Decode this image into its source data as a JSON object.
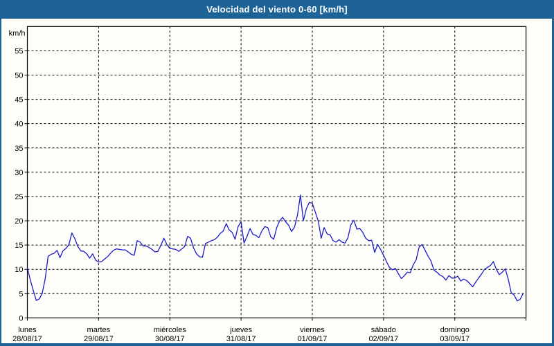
{
  "window": {
    "title": "Velocidad del viento 0-60 [km/h]"
  },
  "colors": {
    "header_bg": "#1e6396",
    "frame": "#1e6396",
    "canvas_bg": "#fdfdf9",
    "line": "#1a1ac8",
    "grid": "#000000",
    "text": "#000000"
  },
  "chart_data": {
    "type": "line",
    "title": "Velocidad del viento 0-60 [km/h]",
    "ylabel": "km/h",
    "ylim": [
      0,
      60
    ],
    "ytick_interval": 5,
    "yticks": [
      0,
      5,
      10,
      15,
      20,
      25,
      30,
      35,
      40,
      45,
      50,
      55
    ],
    "grid": true,
    "legend": "none",
    "days": [
      {
        "label": "lunes",
        "date": "28/08/17"
      },
      {
        "label": "martes",
        "date": "29/08/17"
      },
      {
        "label": "miércoles",
        "date": "30/08/17"
      },
      {
        "label": "jueves",
        "date": "31/08/17"
      },
      {
        "label": "viernes",
        "date": "01/09/17"
      },
      {
        "label": "sábado",
        "date": "02/09/17"
      },
      {
        "label": "domingo",
        "date": "03/09/17"
      }
    ],
    "series": [
      {
        "name": "wind-speed",
        "unit": "km/h",
        "points_per_day": 24,
        "values": [
          10.3,
          7.8,
          5.6,
          3.6,
          3.9,
          5.0,
          8.0,
          12.7,
          13.1,
          13.3,
          13.9,
          12.4,
          13.8,
          14.3,
          15.1,
          17.5,
          16.3,
          14.7,
          13.8,
          13.7,
          13.2,
          12.3,
          13.2,
          11.9,
          11.5,
          11.6,
          12.1,
          12.6,
          13.3,
          13.9,
          14.2,
          14.1,
          14.0,
          14.0,
          13.6,
          13.1,
          12.9,
          15.9,
          15.6,
          14.8,
          14.8,
          14.5,
          14.1,
          13.6,
          13.7,
          15.0,
          16.4,
          15.1,
          14.3,
          14.2,
          14.1,
          13.7,
          14.2,
          14.7,
          16.8,
          16.4,
          14.4,
          13.2,
          12.6,
          12.5,
          15.3,
          15.6,
          15.9,
          16.1,
          16.6,
          17.4,
          17.9,
          19.4,
          18.1,
          17.6,
          16.2,
          18.8,
          19.8,
          15.4,
          16.8,
          18.4,
          17.2,
          17.0,
          16.5,
          17.9,
          18.8,
          18.6,
          16.7,
          16.2,
          18.6,
          20.0,
          20.7,
          19.8,
          19.1,
          17.8,
          18.7,
          21.2,
          25.3,
          20.0,
          22.5,
          23.8,
          23.6,
          21.8,
          19.9,
          16.4,
          18.6,
          17.3,
          17.1,
          15.9,
          15.6,
          16.1,
          15.6,
          15.4,
          16.5,
          19.2,
          20.1,
          18.3,
          18.4,
          17.6,
          16.4,
          15.9,
          16.0,
          13.5,
          15.1,
          14.1,
          12.9,
          11.6,
          10.4,
          9.9,
          10.2,
          9.1,
          8.1,
          8.7,
          9.4,
          9.3,
          10.9,
          12.0,
          14.6,
          15.1,
          13.9,
          12.7,
          11.7,
          9.8,
          9.4,
          8.8,
          8.5,
          7.8,
          8.7,
          8.2,
          8.2,
          8.6,
          7.6,
          8.0,
          7.7,
          7.1,
          6.4,
          7.3,
          8.2,
          9.0,
          10.0,
          10.4,
          10.8,
          11.6,
          10.0,
          8.9,
          9.4,
          10.1,
          8.0,
          5.2,
          4.7,
          3.5,
          3.8,
          5.0
        ]
      }
    ]
  }
}
